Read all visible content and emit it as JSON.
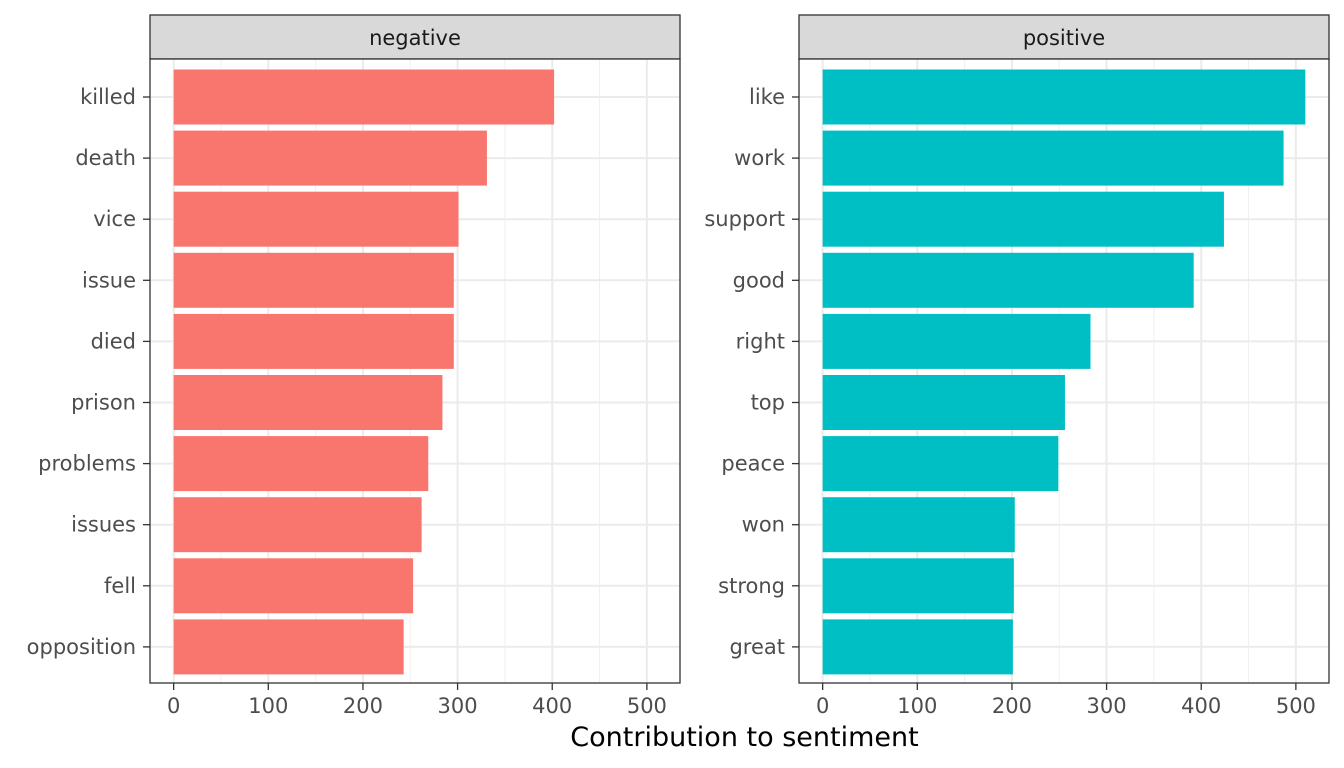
{
  "chart_data": {
    "type": "bar",
    "orientation": "horizontal",
    "xlabel": "Contribution to sentiment",
    "ylabel": "",
    "xlim": [
      -25,
      535
    ],
    "x_ticks": [
      0,
      100,
      200,
      300,
      400,
      500
    ],
    "x_tick_labels": [
      "0",
      "100",
      "200",
      "300",
      "400",
      "500"
    ],
    "grid": true,
    "legend": "none",
    "panels": [
      {
        "label": "negative",
        "color": "#F8766D",
        "categories": [
          "killed",
          "death",
          "vice",
          "issue",
          "died",
          "prison",
          "problems",
          "issues",
          "fell",
          "opposition"
        ],
        "values": [
          402,
          331,
          301,
          296,
          296,
          284,
          269,
          262,
          253,
          243
        ]
      },
      {
        "label": "positive",
        "color": "#00BFC4",
        "categories": [
          "like",
          "work",
          "support",
          "good",
          "right",
          "top",
          "peace",
          "won",
          "strong",
          "great"
        ],
        "values": [
          510,
          487,
          424,
          392,
          283,
          256,
          249,
          203,
          202,
          201
        ]
      }
    ]
  }
}
